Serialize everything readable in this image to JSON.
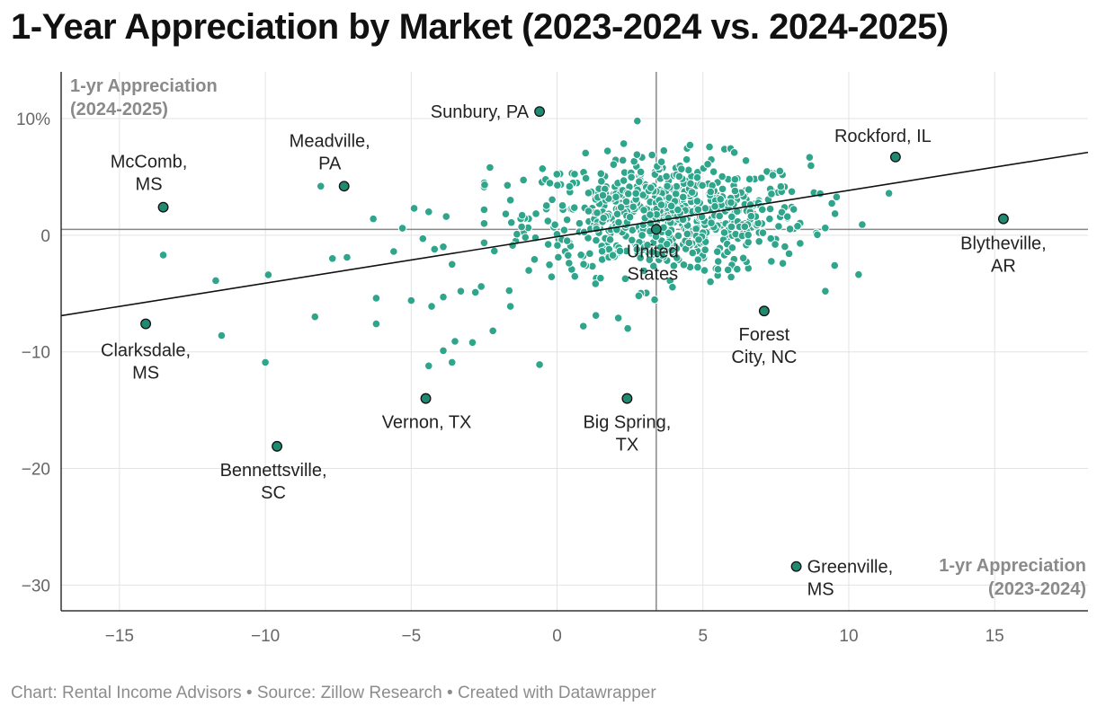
{
  "title": "1-Year Appreciation by Market (2023-2024 vs. 2024-2025)",
  "footer": "Chart: Rental Income Advisors • Source: Zillow Research • Created with Datawrapper",
  "colors": {
    "dot": "#2fa68c",
    "highlight": "#1f8a70",
    "trend": "#111111",
    "reference": "#888888",
    "grid": "#e3e3e3"
  },
  "chart_data": {
    "type": "scatter",
    "xlabel": [
      "1-yr Appreciation",
      "(2023-2024)"
    ],
    "ylabel": [
      "1-yr Appreciation",
      "(2024-2025)"
    ],
    "xlim": [
      -17,
      18.2
    ],
    "ylim": [
      -32.2,
      14
    ],
    "xticks": [
      -15,
      -10,
      -5,
      0,
      5,
      10,
      15
    ],
    "xtick_labels": [
      "−15",
      "−10",
      "−5",
      "0",
      "5",
      "10",
      "15"
    ],
    "yticks": [
      10,
      0,
      -10,
      -20,
      -30
    ],
    "ytick_labels": [
      "10%",
      "0",
      "−10",
      "−20",
      "−30"
    ],
    "reference_lines": {
      "x": 3.4,
      "y": 0.5
    },
    "trend_line": [
      [
        -17,
        -6.9
      ],
      [
        18.2,
        7.1
      ]
    ],
    "labeled_points": [
      {
        "name": [
          "Sunbury, PA"
        ],
        "x": -0.6,
        "y": 10.6
      },
      {
        "name": [
          "Rockford, IL"
        ],
        "x": 11.6,
        "y": 6.7
      },
      {
        "name": [
          "Meadville,",
          "PA"
        ],
        "x": -7.3,
        "y": 4.2
      },
      {
        "name": [
          "McComb,",
          "MS"
        ],
        "x": -13.5,
        "y": 2.4
      },
      {
        "name": [
          "Blytheville,",
          "AR"
        ],
        "x": 15.3,
        "y": 1.4
      },
      {
        "name": [
          "United",
          "States"
        ],
        "x": 3.4,
        "y": 0.5
      },
      {
        "name": [
          "Clarksdale,",
          "MS"
        ],
        "x": -14.1,
        "y": -7.6
      },
      {
        "name": [
          "Forest",
          "City, NC"
        ],
        "x": 7.1,
        "y": -6.5
      },
      {
        "name": [
          "Vernon, TX"
        ],
        "x": -4.5,
        "y": -14.0
      },
      {
        "name": [
          "Big Spring,",
          "TX"
        ],
        "x": 2.4,
        "y": -14.0
      },
      {
        "name": [
          "Bennettsville,",
          "SC"
        ],
        "x": -9.6,
        "y": -18.1
      },
      {
        "name": [
          "Greenville,",
          "MS"
        ],
        "x": 8.2,
        "y": -28.4
      }
    ],
    "outlier_points": [
      [
        -8.1,
        4.2
      ],
      [
        -6.3,
        1.4
      ],
      [
        -5.3,
        0.6
      ],
      [
        -4.9,
        2.3
      ],
      [
        -4.6,
        -0.3
      ],
      [
        -4.2,
        -1.2
      ],
      [
        -4.4,
        2.0
      ],
      [
        -3.8,
        1.6
      ],
      [
        -3.9,
        -1.0
      ],
      [
        -3.6,
        -2.5
      ],
      [
        -3.3,
        -4.8
      ],
      [
        -3.9,
        -5.3
      ],
      [
        -4.3,
        -6.1
      ],
      [
        -5.0,
        -5.6
      ],
      [
        -6.2,
        -5.4
      ],
      [
        -6.2,
        -7.6
      ],
      [
        -7.7,
        -2.0
      ],
      [
        -8.3,
        -7.0
      ],
      [
        -9.9,
        -3.4
      ],
      [
        -11.7,
        -3.9
      ],
      [
        -11.5,
        -8.6
      ],
      [
        -13.5,
        -1.7
      ],
      [
        -10.0,
        -10.9
      ],
      [
        -4.4,
        -11.2
      ],
      [
        -3.9,
        -9.9
      ],
      [
        -3.5,
        -9.1
      ],
      [
        -2.9,
        -9.2
      ],
      [
        -3.6,
        -10.9
      ],
      [
        -2.2,
        -8.2
      ],
      [
        -0.6,
        -11.1
      ],
      [
        -1.6,
        -6.1
      ],
      [
        0.9,
        -7.8
      ],
      [
        2.1,
        -7.1
      ],
      [
        2.8,
        -5.2
      ],
      [
        -2.5,
        1.0
      ],
      [
        -1.6,
        3.0
      ],
      [
        -2.3,
        5.8
      ],
      [
        -0.5,
        5.7
      ],
      [
        -2.8,
        -4.9
      ],
      [
        -5.6,
        -1.4
      ],
      [
        -7.2,
        -1.9
      ],
      [
        -2.6,
        -4.4
      ]
    ],
    "cluster": {
      "count": 720,
      "center": [
        3.8,
        1.6
      ],
      "spread": [
        2.4,
        2.5
      ],
      "x_range": [
        -2.5,
        12.5
      ],
      "y_range": [
        -8,
        10.5
      ]
    }
  }
}
